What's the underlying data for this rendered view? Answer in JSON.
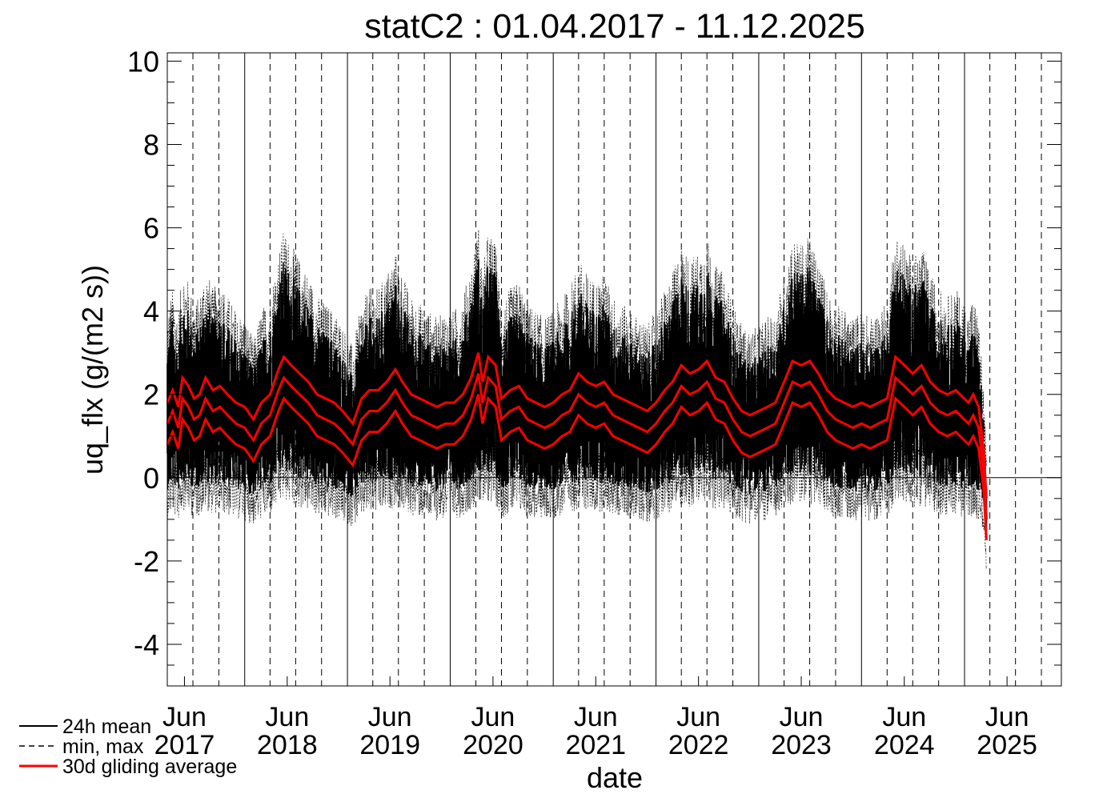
{
  "chart_data": {
    "type": "line",
    "title": "statC2 : 01.04.2017 - 11.12.2025",
    "xlabel": "date",
    "ylabel": "uq_flx (g/(m2 s))",
    "ylim": [
      -5,
      10.2
    ],
    "xlim": [
      "2017-04-01",
      "2025-12-11"
    ],
    "yticks": [
      -4,
      -2,
      0,
      2,
      4,
      6,
      8,
      10
    ],
    "xtick_labels": [
      {
        "month": "Jun",
        "year": "2017",
        "date": "2017-06-01"
      },
      {
        "month": "Jun",
        "year": "2018",
        "date": "2018-06-01"
      },
      {
        "month": "Jun",
        "year": "2019",
        "date": "2019-06-01"
      },
      {
        "month": "Jun",
        "year": "2020",
        "date": "2020-06-01"
      },
      {
        "month": "Jun",
        "year": "2021",
        "date": "2021-06-01"
      },
      {
        "month": "Jun",
        "year": "2022",
        "date": "2022-06-01"
      },
      {
        "month": "Jun",
        "year": "2023",
        "date": "2023-06-01"
      },
      {
        "month": "Jun",
        "year": "2024",
        "date": "2024-06-01"
      },
      {
        "month": "Jun",
        "year": "2025",
        "date": "2025-06-01"
      }
    ],
    "year_lines": [
      "2018-01-01",
      "2019-01-01",
      "2020-01-01",
      "2021-01-01",
      "2022-01-01",
      "2023-01-01",
      "2024-01-01",
      "2025-01-01"
    ],
    "quarter_lines": [
      "2017-07-01",
      "2017-10-01",
      "2018-04-01",
      "2018-07-01",
      "2018-10-01",
      "2019-04-01",
      "2019-07-01",
      "2019-10-01",
      "2020-04-01",
      "2020-07-01",
      "2020-10-01",
      "2021-04-01",
      "2021-07-01",
      "2021-10-01",
      "2022-04-01",
      "2022-07-01",
      "2022-10-01",
      "2023-04-01",
      "2023-07-01",
      "2023-10-01",
      "2024-04-01",
      "2024-07-01",
      "2024-10-01",
      "2025-04-01",
      "2025-07-01",
      "2025-10-01"
    ],
    "zero_line": 0,
    "legend": {
      "position": "bottom-left",
      "entries": [
        "24h mean",
        "min, max",
        "30d gliding average"
      ]
    },
    "series": [
      {
        "name": "30d gliding average",
        "color": "#ff0000",
        "style": "solid",
        "data": [
          [
            "2017-04-01",
            1.3
          ],
          [
            "2017-04-20",
            1.6
          ],
          [
            "2017-05-10",
            1.2
          ],
          [
            "2017-05-25",
            1.9
          ],
          [
            "2017-06-15",
            1.7
          ],
          [
            "2017-07-05",
            1.4
          ],
          [
            "2017-07-25",
            1.5
          ],
          [
            "2017-08-15",
            1.9
          ],
          [
            "2017-09-10",
            1.6
          ],
          [
            "2017-10-05",
            1.7
          ],
          [
            "2017-11-01",
            1.5
          ],
          [
            "2017-12-01",
            1.3
          ],
          [
            "2018-01-01",
            1.2
          ],
          [
            "2018-02-01",
            0.9
          ],
          [
            "2018-03-01",
            1.3
          ],
          [
            "2018-04-01",
            1.5
          ],
          [
            "2018-05-01",
            2.1
          ],
          [
            "2018-05-20",
            2.4
          ],
          [
            "2018-06-15",
            2.2
          ],
          [
            "2018-07-15",
            2.0
          ],
          [
            "2018-08-15",
            1.8
          ],
          [
            "2018-09-15",
            1.5
          ],
          [
            "2018-10-15",
            1.4
          ],
          [
            "2018-11-15",
            1.3
          ],
          [
            "2018-12-15",
            1.1
          ],
          [
            "2019-01-20",
            0.8
          ],
          [
            "2019-02-20",
            1.4
          ],
          [
            "2019-03-20",
            1.6
          ],
          [
            "2019-04-20",
            1.6
          ],
          [
            "2019-05-20",
            1.8
          ],
          [
            "2019-06-20",
            2.1
          ],
          [
            "2019-07-15",
            1.8
          ],
          [
            "2019-08-15",
            1.5
          ],
          [
            "2019-09-15",
            1.4
          ],
          [
            "2019-10-15",
            1.3
          ],
          [
            "2019-11-15",
            1.2
          ],
          [
            "2019-12-15",
            1.3
          ],
          [
            "2020-01-15",
            1.3
          ],
          [
            "2020-02-15",
            1.5
          ],
          [
            "2020-03-15",
            1.9
          ],
          [
            "2020-04-10",
            2.5
          ],
          [
            "2020-04-25",
            1.8
          ],
          [
            "2020-05-15",
            2.4
          ],
          [
            "2020-06-10",
            2.2
          ],
          [
            "2020-07-01",
            1.4
          ],
          [
            "2020-08-01",
            1.6
          ],
          [
            "2020-09-01",
            1.7
          ],
          [
            "2020-10-01",
            1.4
          ],
          [
            "2020-11-01",
            1.3
          ],
          [
            "2020-12-01",
            1.2
          ],
          [
            "2021-01-01",
            1.3
          ],
          [
            "2021-02-01",
            1.5
          ],
          [
            "2021-03-01",
            1.6
          ],
          [
            "2021-04-01",
            2.0
          ],
          [
            "2021-05-01",
            1.8
          ],
          [
            "2021-06-01",
            1.7
          ],
          [
            "2021-07-01",
            1.8
          ],
          [
            "2021-08-01",
            1.5
          ],
          [
            "2021-09-01",
            1.4
          ],
          [
            "2021-10-01",
            1.3
          ],
          [
            "2021-11-01",
            1.2
          ],
          [
            "2021-12-01",
            1.1
          ],
          [
            "2022-01-01",
            1.3
          ],
          [
            "2022-02-01",
            1.6
          ],
          [
            "2022-03-01",
            1.8
          ],
          [
            "2022-04-01",
            2.2
          ],
          [
            "2022-05-01",
            2.0
          ],
          [
            "2022-06-01",
            2.1
          ],
          [
            "2022-07-01",
            2.3
          ],
          [
            "2022-08-01",
            1.9
          ],
          [
            "2022-09-01",
            1.8
          ],
          [
            "2022-10-01",
            1.4
          ],
          [
            "2022-11-01",
            1.1
          ],
          [
            "2022-12-01",
            1.0
          ],
          [
            "2023-01-01",
            1.1
          ],
          [
            "2023-02-01",
            1.2
          ],
          [
            "2023-03-01",
            1.3
          ],
          [
            "2023-04-01",
            1.8
          ],
          [
            "2023-05-01",
            2.3
          ],
          [
            "2023-06-01",
            2.2
          ],
          [
            "2023-07-01",
            2.3
          ],
          [
            "2023-08-01",
            2.0
          ],
          [
            "2023-09-01",
            1.6
          ],
          [
            "2023-10-01",
            1.4
          ],
          [
            "2023-11-01",
            1.3
          ],
          [
            "2023-12-01",
            1.2
          ],
          [
            "2024-01-01",
            1.3
          ],
          [
            "2024-02-01",
            1.2
          ],
          [
            "2024-03-01",
            1.3
          ],
          [
            "2024-04-01",
            1.4
          ],
          [
            "2024-05-01",
            2.4
          ],
          [
            "2024-06-01",
            2.2
          ],
          [
            "2024-07-01",
            2.0
          ],
          [
            "2024-08-01",
            2.2
          ],
          [
            "2024-09-01",
            1.8
          ],
          [
            "2024-10-01",
            1.6
          ],
          [
            "2024-11-01",
            1.5
          ],
          [
            "2024-12-01",
            1.6
          ],
          [
            "2025-01-15",
            1.3
          ],
          [
            "2025-02-01",
            1.5
          ],
          [
            "2025-02-20",
            1.2
          ],
          [
            "2025-03-10",
            0.2
          ],
          [
            "2025-03-20",
            -1.0
          ]
        ]
      }
    ]
  }
}
